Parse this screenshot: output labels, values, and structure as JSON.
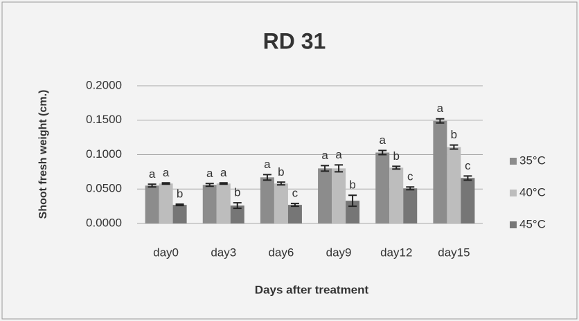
{
  "chart_data": {
    "type": "bar",
    "title": "RD 31",
    "x_label": "Days after treatment",
    "y_label": "Shoot fresh weight (cm.)",
    "categories": [
      "day0",
      "day3",
      "day6",
      "day9",
      "day12",
      "day15"
    ],
    "series": [
      {
        "name": "35°C",
        "color": "#8c8c8c",
        "values": [
          0.055,
          0.056,
          0.067,
          0.08,
          0.103,
          0.149
        ],
        "errors": [
          0.002,
          0.002,
          0.004,
          0.004,
          0.003,
          0.003
        ],
        "letters": [
          "a",
          "a",
          "a",
          "a",
          "a",
          "a"
        ]
      },
      {
        "name": "40°C",
        "color": "#bdbdbd",
        "values": [
          0.058,
          0.058,
          0.058,
          0.08,
          0.081,
          0.111
        ],
        "errors": [
          0.001,
          0.001,
          0.002,
          0.005,
          0.002,
          0.003
        ],
        "letters": [
          "a",
          "a",
          "b",
          "a",
          "b",
          "b"
        ]
      },
      {
        "name": "45°C",
        "color": "#767676",
        "values": [
          0.027,
          0.026,
          0.027,
          0.033,
          0.051,
          0.066
        ],
        "errors": [
          0.001,
          0.004,
          0.002,
          0.008,
          0.002,
          0.003
        ],
        "letters": [
          "b",
          "b",
          "c",
          "b",
          "c",
          "c"
        ]
      }
    ],
    "ylim": [
      0,
      0.2
    ],
    "yticks": [
      {
        "value": 0,
        "label": "0.0000"
      },
      {
        "value": 0.05,
        "label": "0.0500"
      },
      {
        "value": 0.1,
        "label": "0.1000"
      },
      {
        "value": 0.15,
        "label": "0.1500"
      },
      {
        "value": 0.2,
        "label": "0.2000"
      }
    ],
    "grid": true,
    "legend": "right"
  }
}
